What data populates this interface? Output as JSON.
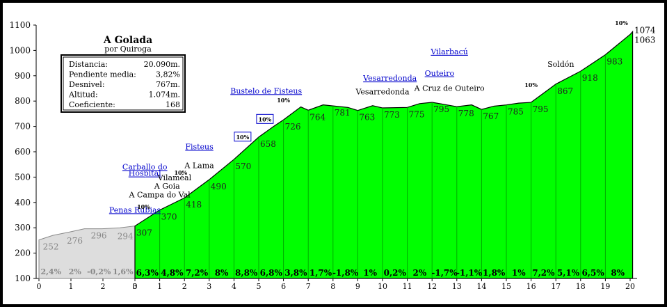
{
  "chart_data": {
    "type": "area",
    "title": "A Golada",
    "subtitle": "por Quiroga",
    "xlim": [
      0,
      20
    ],
    "ylim": [
      100,
      1100
    ],
    "x_ticks": [
      "0",
      "1",
      "2",
      "3",
      "0",
      "1",
      "2",
      "3",
      "4",
      "5",
      "6",
      "7",
      "8",
      "9",
      "10",
      "11",
      "12",
      "13",
      "14",
      "15",
      "16",
      "17",
      "18",
      "19",
      "20"
    ],
    "y_ticks": [
      "100",
      "200",
      "300",
      "400",
      "500",
      "600",
      "700",
      "800",
      "900",
      "1000",
      "1100"
    ],
    "approach": {
      "points": [
        [
          -3.8,
          252
        ],
        [
          -3.25,
          270
        ],
        [
          -2.6,
          283
        ],
        [
          -2.0,
          296
        ],
        [
          -1.3,
          296
        ],
        [
          -0.6,
          300
        ],
        [
          0,
          307
        ]
      ],
      "labels": [
        {
          "x": -3.7,
          "y": "252"
        },
        {
          "x": -2.75,
          "y": "276"
        },
        {
          "x": -1.8,
          "y": "296"
        },
        {
          "x": -0.75,
          "y": "294"
        }
      ],
      "slopes": [
        "2,4%",
        "2%",
        "-0,2%",
        "1,6%"
      ]
    },
    "profile": {
      "points": [
        [
          0,
          307
        ],
        [
          1,
          370
        ],
        [
          2,
          418
        ],
        [
          3,
          490
        ],
        [
          4,
          570
        ],
        [
          5,
          658
        ],
        [
          5.6,
          700
        ],
        [
          6,
          726
        ],
        [
          6.7,
          777
        ],
        [
          7,
          764
        ],
        [
          7.6,
          785
        ],
        [
          8,
          781
        ],
        [
          8.6,
          775
        ],
        [
          9,
          763
        ],
        [
          9.6,
          782
        ],
        [
          10,
          773
        ],
        [
          11,
          775
        ],
        [
          11.5,
          790
        ],
        [
          12,
          795
        ],
        [
          12.6,
          785
        ],
        [
          13,
          778
        ],
        [
          13.6,
          785
        ],
        [
          14,
          767
        ],
        [
          14.5,
          780
        ],
        [
          15,
          785
        ],
        [
          15.5,
          792
        ],
        [
          16,
          795
        ],
        [
          17,
          867
        ],
        [
          18,
          918
        ],
        [
          19,
          983
        ],
        [
          20,
          1063
        ],
        [
          20.1,
          1074
        ]
      ],
      "km_labels": [
        "307",
        "370",
        "418",
        "490",
        "570",
        "658",
        "726",
        "764",
        "781",
        "763",
        "773",
        "775",
        "795",
        "778",
        "767",
        "785",
        "795",
        "867",
        "918",
        "983"
      ],
      "end_labels": [
        "1074",
        "1063"
      ],
      "slopes": [
        "6,3%",
        "4,8%",
        "7,2%",
        "8%",
        "8,8%",
        "6,8%",
        "3,8%",
        "1,7%",
        "-1,8%",
        "1%",
        "0,2%",
        "2%",
        "-1,7%",
        "-1,1%",
        "1,8%",
        "1%",
        "7,2%",
        "5,1%",
        "6,5%",
        "8%"
      ]
    },
    "infobox": {
      "rows": [
        {
          "label": "Distancia:",
          "value": "20.090m."
        },
        {
          "label": "Pendiente media:",
          "value": "3,82%"
        },
        {
          "label": "Desnivel:",
          "value": "767m."
        },
        {
          "label": "Altitud:",
          "value": "1.074m."
        },
        {
          "label": "Coeficiente:",
          "value": "168"
        }
      ]
    },
    "places": [
      {
        "name": "Penas Rubias",
        "x": 0.0,
        "alt": 360,
        "style": "blue"
      },
      {
        "name": "Carballo do",
        "x": 0.4,
        "alt": 530,
        "style": "blue"
      },
      {
        "name": "Hospital",
        "x": 0.4,
        "alt": 505,
        "style": "blue"
      },
      {
        "name": "A Campa do Val",
        "x": 1.0,
        "alt": 420,
        "style": "black"
      },
      {
        "name": "A Goia",
        "x": 1.3,
        "alt": 455,
        "style": "black"
      },
      {
        "name": "Vilaméal",
        "x": 1.6,
        "alt": 488,
        "style": "black"
      },
      {
        "name": "A Lama",
        "x": 2.6,
        "alt": 535,
        "style": "black"
      },
      {
        "name": "Fisteus",
        "x": 2.6,
        "alt": 610,
        "style": "blue"
      },
      {
        "name": "Bustelo de Fisteus",
        "x": 5.3,
        "alt": 830,
        "style": "blue"
      },
      {
        "name": "Vesarredonda",
        "x": 10.0,
        "alt": 827,
        "style": "black"
      },
      {
        "name": "Vesarredonda",
        "x": 10.3,
        "alt": 880,
        "style": "blue"
      },
      {
        "name": "A Cruz de Outeiro",
        "x": 12.7,
        "alt": 840,
        "style": "black"
      },
      {
        "name": "Outeiro",
        "x": 12.3,
        "alt": 900,
        "style": "blue"
      },
      {
        "name": "Vilarbacú",
        "x": 12.7,
        "alt": 985,
        "style": "blue"
      },
      {
        "name": "Soldón",
        "x": 17.2,
        "alt": 935,
        "style": "black"
      }
    ],
    "gradient_badges": [
      {
        "text": "10%",
        "x": 0.35,
        "alt": 375,
        "boxed": false
      },
      {
        "text": "10%",
        "x": 1.85,
        "alt": 510,
        "boxed": false
      },
      {
        "text": "10%",
        "x": 4.35,
        "alt": 650,
        "boxed": true
      },
      {
        "text": "10%",
        "x": 5.25,
        "alt": 720,
        "boxed": true
      },
      {
        "text": "10%",
        "x": 6.0,
        "alt": 795,
        "boxed": false
      },
      {
        "text": "10%",
        "x": 16.0,
        "alt": 855,
        "boxed": false
      },
      {
        "text": "10%",
        "x": 19.65,
        "alt": 1100,
        "boxed": false
      }
    ]
  },
  "colors": {
    "fill": "#00ff00",
    "approach_fill": "#dddddd",
    "blue": "#0000cc",
    "dark": "#000000"
  }
}
